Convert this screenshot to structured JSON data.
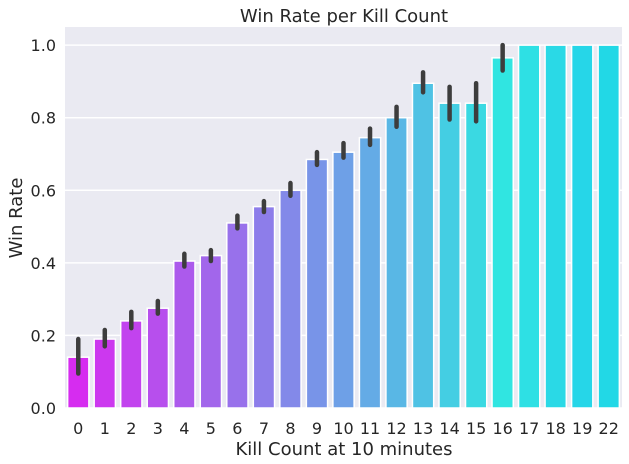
{
  "chart_data": {
    "type": "bar",
    "title": "Win Rate per Kill Count",
    "xlabel": "Kill Count at 10 minutes",
    "ylabel": "Win Rate",
    "ylim": [
      0,
      1.05
    ],
    "yticks": [
      "0.0",
      "0.2",
      "0.4",
      "0.6",
      "0.8",
      "1.0"
    ],
    "grid": true,
    "categories": [
      "0",
      "1",
      "2",
      "3",
      "4",
      "5",
      "6",
      "7",
      "8",
      "9",
      "10",
      "11",
      "12",
      "13",
      "14",
      "15",
      "16",
      "17",
      "18",
      "19",
      "22"
    ],
    "values": [
      0.14,
      0.19,
      0.24,
      0.275,
      0.405,
      0.42,
      0.51,
      0.555,
      0.6,
      0.685,
      0.705,
      0.745,
      0.8,
      0.895,
      0.84,
      0.84,
      0.965,
      1.0,
      1.0,
      1.0,
      1.0
    ],
    "error_low": [
      0.095,
      0.17,
      0.22,
      0.26,
      0.39,
      0.405,
      0.495,
      0.54,
      0.585,
      0.67,
      0.69,
      0.725,
      0.775,
      0.87,
      0.795,
      0.79,
      0.93,
      1.0,
      1.0,
      1.0,
      1.0
    ],
    "error_high": [
      0.19,
      0.215,
      0.265,
      0.295,
      0.425,
      0.435,
      0.53,
      0.57,
      0.62,
      0.705,
      0.73,
      0.77,
      0.83,
      0.925,
      0.885,
      0.895,
      1.0,
      1.0,
      1.0,
      1.0,
      1.0
    ],
    "colors": [
      "#d62cf0",
      "#cc38ef",
      "#c243ee",
      "#b74fed",
      "#ac5aec",
      "#a266eb",
      "#9871eb",
      "#8d7dea",
      "#8389e9",
      "#7894e8",
      "#6ea0e7",
      "#64abe6",
      "#59b7e5",
      "#4fc2e4",
      "#44cee3",
      "#3ad9e2",
      "#30e5e1",
      "#2ee0e4",
      "#2ad9e6",
      "#26d6e8",
      "#22d8e6"
    ],
    "errorbar_color": "#3d3d3d",
    "background_color": "#eaeaf2"
  }
}
